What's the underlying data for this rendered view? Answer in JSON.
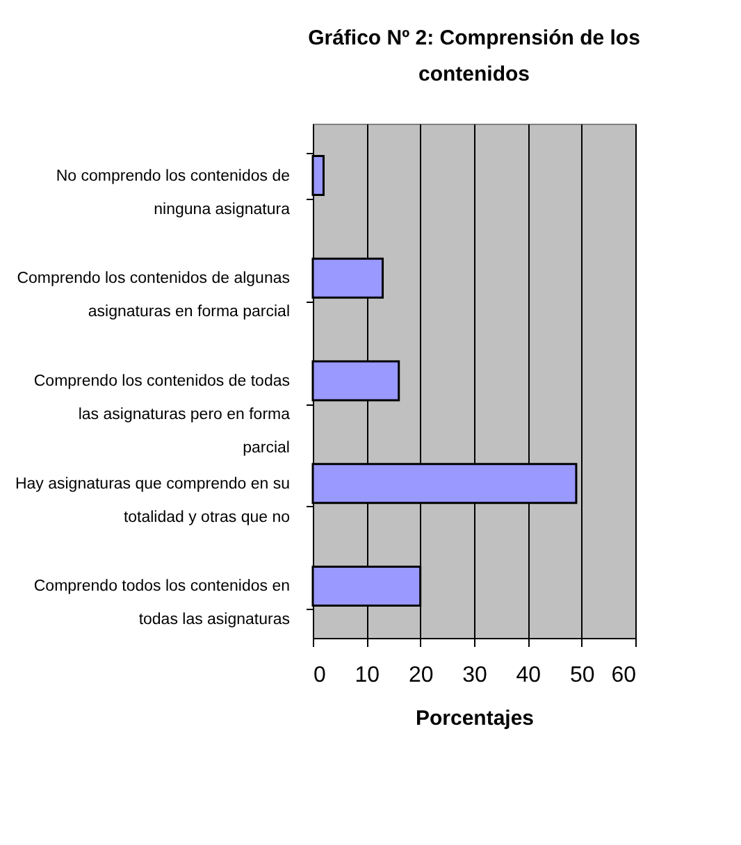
{
  "chart_data": {
    "type": "bar",
    "orientation": "horizontal",
    "title": "Gráfico Nº 2: Comprensión de los contenidos",
    "xlabel": "Porcentajes",
    "categories": [
      "No comprendo los contenidos de ninguna asignatura",
      "Comprendo los contenidos de algunas asignaturas en forma parcial",
      "Comprendo los contenidos de todas las asignaturas pero en forma parcial",
      "Hay asignaturas que comprendo en su totalidad y otras que no",
      "Comprendo todos los contenidos en todas las asignaturas"
    ],
    "values": [
      2,
      13,
      16,
      49,
      20
    ],
    "color": "#9999ff",
    "xlim": [
      0,
      60
    ],
    "xticks": [
      0,
      10,
      20,
      30,
      40,
      50,
      60
    ],
    "grid": "x"
  }
}
